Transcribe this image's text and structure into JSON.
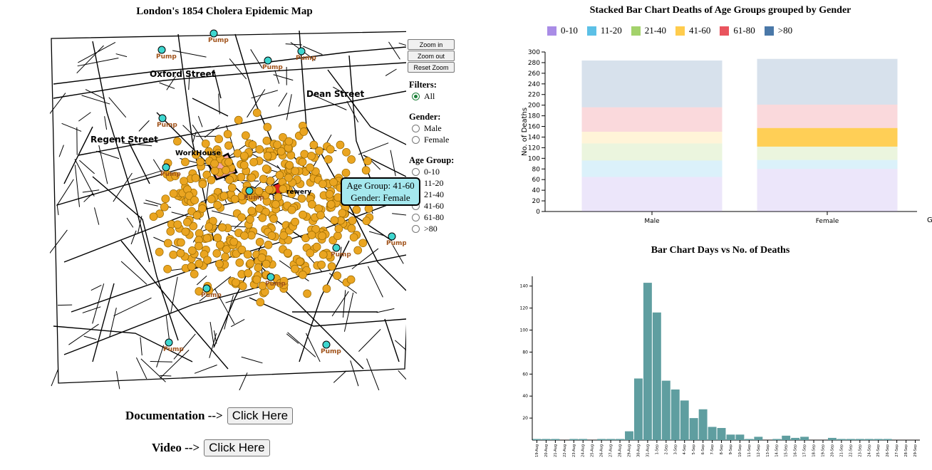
{
  "map": {
    "title": "London's 1854 Cholera Epidemic Map",
    "streets": [
      "Oxford Street",
      "Dean Street",
      "Regent Street"
    ],
    "workhouse_label": "WorkHouse",
    "brewery_label": "rewery",
    "pump_label": "Pump",
    "pump_color": "#3ed6cf",
    "death_color": "#eaa521",
    "workhouse_color": "#f4a6a0",
    "brewery_color": "#e02020"
  },
  "zoom": {
    "in": "Zoom in",
    "out": "Zoom out",
    "reset": "Reset Zoom"
  },
  "filters": {
    "title": "Filters:",
    "all": "All",
    "gender_title": "Gender:",
    "gender_options": [
      "Male",
      "Female"
    ],
    "age_title": "Age Group:",
    "age_options": [
      "0-10",
      "11-20",
      "21-40",
      "41-60",
      "61-80",
      ">80"
    ]
  },
  "tooltip": {
    "line1": "Age Group: 41-60",
    "line2": "Gender: Female"
  },
  "links": {
    "doc_label": "Documentation -->",
    "doc_button": "Click Here",
    "video_label": "Video -->",
    "video_button": "Click Here"
  },
  "chart_data": [
    {
      "type": "bar",
      "stacked": true,
      "title": "Stacked Bar Chart Deaths of Age Groups grouped by Gender",
      "ylabel": "No. of Deaths",
      "xlabel": "Gender",
      "categories": [
        "Male",
        "Female"
      ],
      "ylim": [
        0,
        300
      ],
      "yticks": [
        0,
        20,
        40,
        60,
        80,
        100,
        120,
        140,
        160,
        180,
        200,
        220,
        240,
        260,
        280,
        300
      ],
      "highlighted": {
        "category": "Female",
        "series": "41-60"
      },
      "legend_position": "top",
      "series": [
        {
          "name": "0-10",
          "color": "#a98ce6",
          "values": [
            65,
            80
          ]
        },
        {
          "name": "11-20",
          "color": "#5cc0e6",
          "values": [
            31,
            17
          ]
        },
        {
          "name": "21-40",
          "color": "#a3d26b",
          "values": [
            32,
            25
          ]
        },
        {
          "name": "41-60",
          "color": "#ffcc4d",
          "values": [
            22,
            35
          ]
        },
        {
          "name": "61-80",
          "color": "#e9545e",
          "values": [
            46,
            44
          ]
        },
        {
          "name": ">80",
          "color": "#4a78a8",
          "values": [
            88,
            86
          ]
        }
      ]
    },
    {
      "type": "bar",
      "title": "Bar Chart Days vs No. of Deaths",
      "color": "#5f9ea0",
      "ylim": [
        0,
        145
      ],
      "yticks": [
        20,
        40,
        60,
        80,
        100,
        120,
        140
      ],
      "categories": [
        "19-Aug",
        "20-Aug",
        "21-Aug",
        "22-Aug",
        "23-Aug",
        "24-Aug",
        "25-Aug",
        "26-Aug",
        "27-Aug",
        "28-Aug",
        "29-Aug",
        "30-Aug",
        "31-Aug",
        "1-Sep",
        "2-Sep",
        "3-Sep",
        "4-Sep",
        "5-Sep",
        "6-Sep",
        "7-Sep",
        "8-Sep",
        "9-Sep",
        "10-Sep",
        "11-Sep",
        "12-Sep",
        "13-Sep",
        "14-Sep",
        "15-Sep",
        "16-Sep",
        "17-Sep",
        "18-Sep",
        "19-Sep",
        "20-Sep",
        "21-Sep",
        "22-Sep",
        "23-Sep",
        "24-Sep",
        "25-Sep",
        "26-Sep",
        "27-Sep",
        "28-Sep",
        "29-Sep"
      ],
      "values": [
        1,
        1,
        1,
        0,
        1,
        1,
        0,
        1,
        1,
        1,
        8,
        56,
        143,
        116,
        54,
        46,
        36,
        20,
        28,
        12,
        11,
        5,
        5,
        1,
        3,
        0,
        1,
        4,
        2,
        3,
        0,
        0,
        2,
        1,
        1,
        1,
        1,
        1,
        1,
        0,
        0,
        0
      ]
    }
  ]
}
